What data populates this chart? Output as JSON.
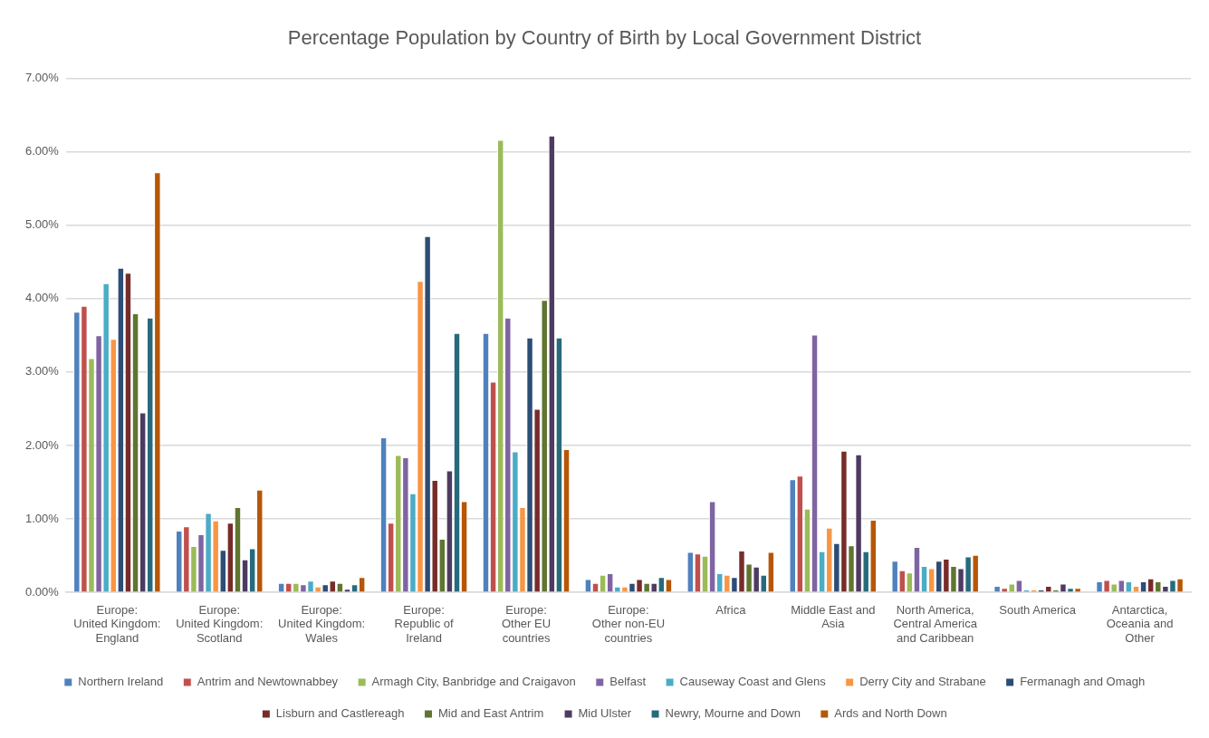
{
  "chart_data": {
    "type": "bar",
    "title": "Percentage Population by Country of Birth by Local Government District",
    "categories": [
      "Europe:\nUnited Kingdom:\nEngland",
      "Europe:\nUnited Kingdom:\nScotland",
      "Europe:\nUnited Kingdom:\nWales",
      "Europe:\nRepublic of\nIreland",
      "Europe:\nOther EU\ncountries",
      "Europe:\nOther non-EU\ncountries",
      "Africa",
      "Middle East and\nAsia",
      "North America,\nCentral America\nand Caribbean",
      "South America",
      "Antarctica,\nOceania and\nOther"
    ],
    "series": [
      {
        "name": "Northern Ireland",
        "color": "#4f81bd",
        "values": [
          3.82,
          0.84,
          0.13,
          2.11,
          3.53,
          0.18,
          0.55,
          1.54,
          0.43,
          0.09,
          0.15
        ]
      },
      {
        "name": "Antrim and Newtownabbey",
        "color": "#c0504d",
        "values": [
          3.9,
          0.9,
          0.13,
          0.95,
          2.87,
          0.13,
          0.53,
          1.59,
          0.3,
          0.06,
          0.17
        ]
      },
      {
        "name": "Armagh City, Banbridge and Craigavon",
        "color": "#9bbb59",
        "values": [
          3.19,
          0.63,
          0.13,
          1.87,
          6.16,
          0.24,
          0.5,
          1.14,
          0.27,
          0.12,
          0.12
        ]
      },
      {
        "name": "Belfast",
        "color": "#8064a2",
        "values": [
          3.5,
          0.79,
          0.11,
          1.84,
          3.74,
          0.26,
          1.24,
          3.51,
          0.62,
          0.17,
          0.17
        ]
      },
      {
        "name": "Causeway Coast and Glens",
        "color": "#4bacc6",
        "values": [
          4.21,
          1.08,
          0.16,
          1.35,
          1.92,
          0.08,
          0.26,
          0.56,
          0.36,
          0.04,
          0.15
        ]
      },
      {
        "name": "Derry City and Strabane",
        "color": "#f79646",
        "values": [
          3.45,
          0.98,
          0.08,
          4.24,
          1.16,
          0.08,
          0.24,
          0.88,
          0.33,
          0.04,
          0.09
        ]
      },
      {
        "name": "Fermanagh and Omagh",
        "color": "#2c4d75",
        "values": [
          4.42,
          0.58,
          0.11,
          4.85,
          3.47,
          0.13,
          0.21,
          0.67,
          0.43,
          0.04,
          0.15
        ]
      },
      {
        "name": "Lisburn and Castlereagh",
        "color": "#772c2a",
        "values": [
          4.35,
          0.95,
          0.16,
          1.53,
          2.5,
          0.18,
          0.57,
          1.93,
          0.46,
          0.09,
          0.19
        ]
      },
      {
        "name": "Mid and East Antrim",
        "color": "#5f7530",
        "values": [
          3.8,
          1.16,
          0.13,
          0.73,
          3.98,
          0.13,
          0.39,
          0.64,
          0.36,
          0.04,
          0.15
        ]
      },
      {
        "name": "Mid Ulster",
        "color": "#4d3b62",
        "values": [
          2.45,
          0.45,
          0.05,
          1.66,
          6.22,
          0.13,
          0.35,
          1.88,
          0.33,
          0.12,
          0.09
        ]
      },
      {
        "name": "Newry, Mourne and Down",
        "color": "#276a7c",
        "values": [
          3.74,
          0.6,
          0.11,
          3.53,
          3.47,
          0.21,
          0.24,
          0.56,
          0.49,
          0.06,
          0.17
        ]
      },
      {
        "name": "Ards and North Down",
        "color": "#b65708",
        "values": [
          5.72,
          1.4,
          0.21,
          1.24,
          1.95,
          0.18,
          0.55,
          0.99,
          0.51,
          0.06,
          0.19
        ]
      }
    ],
    "ylim": [
      0,
      7
    ],
    "yticks": [
      {
        "value": 0,
        "label": "0.00%"
      },
      {
        "value": 1,
        "label": "1.00%"
      },
      {
        "value": 2,
        "label": "2.00%"
      },
      {
        "value": 3,
        "label": "3.00%"
      },
      {
        "value": 4,
        "label": "4.00%"
      },
      {
        "value": 5,
        "label": "5.00%"
      },
      {
        "value": 6,
        "label": "6.00%"
      },
      {
        "value": 7,
        "label": "7.00%"
      }
    ],
    "grid": "y",
    "legend": "bottom"
  }
}
